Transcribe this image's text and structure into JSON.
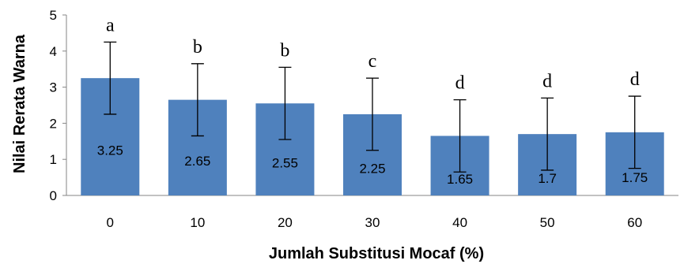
{
  "chart_data": {
    "type": "bar",
    "title": "",
    "xlabel": "Jumlah Substitusi Mocaf (%)",
    "ylabel": "Nilai Rerata Warna",
    "ylim": [
      0,
      5
    ],
    "yticks": [
      0,
      1,
      2,
      3,
      4,
      5
    ],
    "grid": false,
    "legend": "none",
    "bar_color": "#4f81bd",
    "categories": [
      "0",
      "10",
      "20",
      "30",
      "40",
      "50",
      "60"
    ],
    "values": [
      3.25,
      2.65,
      2.55,
      2.25,
      1.65,
      1.7,
      1.75
    ],
    "value_labels": [
      "3.25",
      "2.65",
      "2.55",
      "2.25",
      "1.65",
      "1.7",
      "1.75"
    ],
    "error": [
      1.0,
      1.0,
      1.0,
      1.0,
      1.0,
      1.0,
      1.0
    ],
    "significance_letters": [
      "a",
      "b",
      "b",
      "c",
      "d",
      "d",
      "d"
    ]
  }
}
